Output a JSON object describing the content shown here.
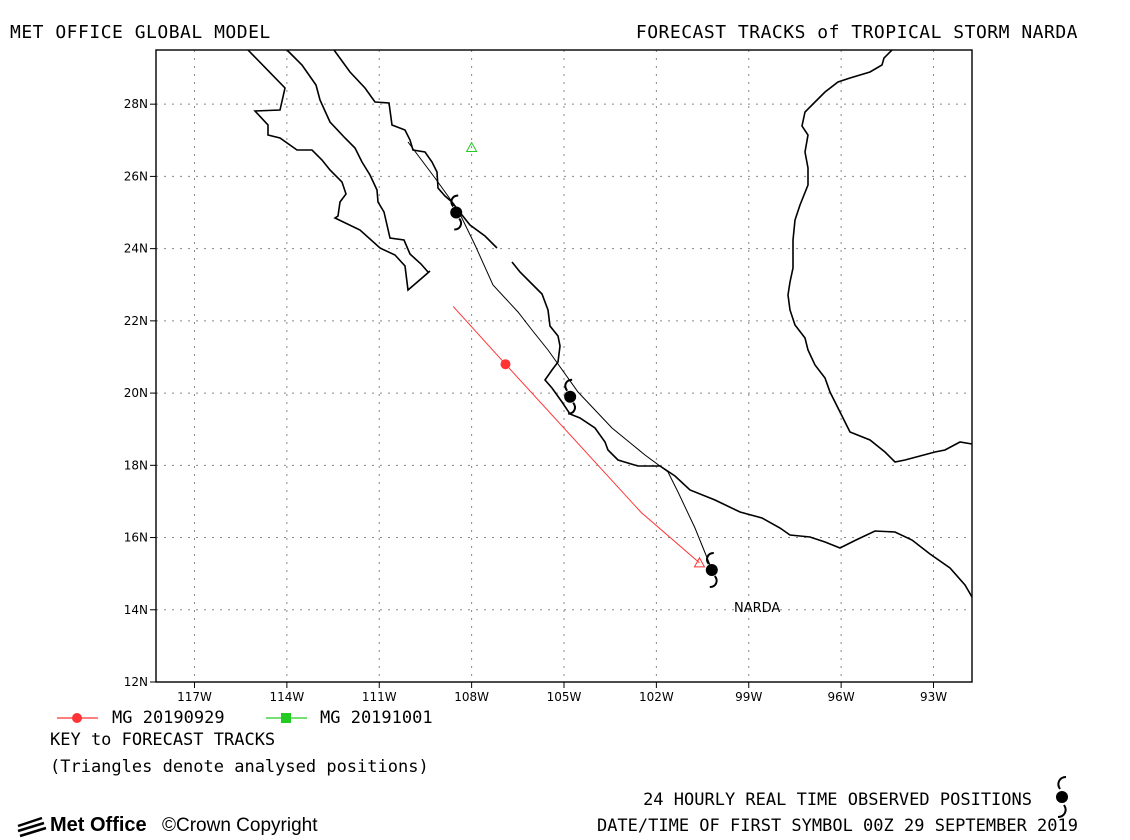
{
  "header": {
    "left_title": "MET OFFICE GLOBAL MODEL",
    "right_title": "FORECAST TRACKS of TROPICAL STORM NARDA"
  },
  "map": {
    "lon_range": [
      -118.25,
      -91.75
    ],
    "lat_range": [
      12,
      29.5
    ],
    "lat_labels": [
      "12N",
      "14N",
      "16N",
      "18N",
      "20N",
      "22N",
      "24N",
      "26N",
      "28N"
    ],
    "lon_labels": [
      "117W",
      "114W",
      "111W",
      "108W",
      "105W",
      "102W",
      "99W",
      "96W",
      "93W"
    ],
    "storm_label": "NARDA",
    "grid": true
  },
  "tracks": {
    "observed": {
      "name": "24 HOURLY REAL TIME OBSERVED POSITIONS",
      "color": "#000000",
      "symbol_positions": [
        [
          -100.2,
          15.1
        ],
        [
          -104.8,
          19.9
        ],
        [
          -108.5,
          25.0
        ]
      ]
    },
    "forecasts": [
      {
        "name": "MG 20190929",
        "color": "#ff3333",
        "points": [
          [
            -108.6,
            22.4
          ],
          [
            -106.9,
            20.8
          ],
          [
            -102.5,
            16.7
          ],
          [
            -100.6,
            15.3
          ]
        ],
        "marker_at": [
          -106.9,
          20.8
        ],
        "analysed_at": [
          -100.6,
          15.3
        ]
      },
      {
        "name": "MG 20191001",
        "color": "#22cc22",
        "points": [],
        "analysed_at": [
          -108.0,
          26.8
        ]
      }
    ]
  },
  "legend": {
    "item1": "MG 20190929",
    "item2": "MG 20191001",
    "key_title": "KEY to FORECAST TRACKS",
    "triangles_note": "(Triangles denote analysed positions)"
  },
  "footer": {
    "observed_label": "24 HOURLY REAL TIME OBSERVED POSITIONS",
    "date_label": "DATE/TIME OF FIRST SYMBOL 00Z 29 SEPTEMBER 2019",
    "logo_text": "Met Office",
    "copyright": "Crown Copyright"
  }
}
